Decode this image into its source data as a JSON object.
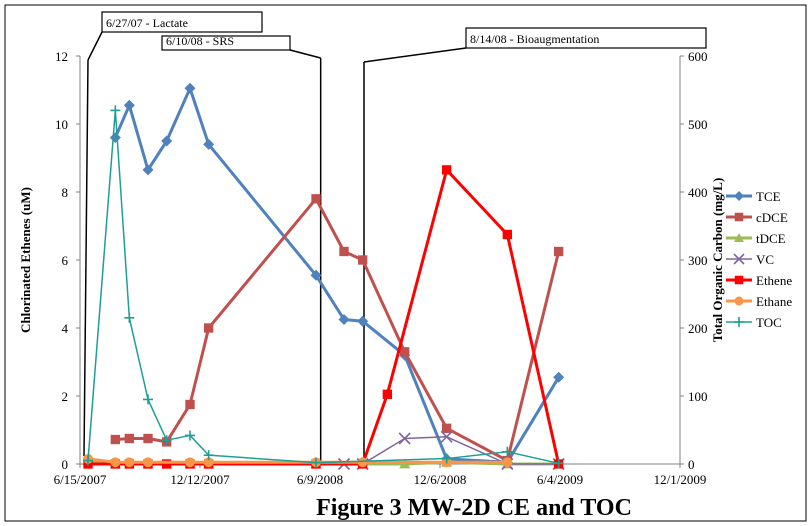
{
  "chart_data": {
    "type": "line",
    "title": "Figure 3 MW-2D CE and TOC",
    "xlabel": "",
    "ylabel": "Chlorinated Ethenes (uM)",
    "y2label": "Total Organic Carbon (mg/L)",
    "xlim": [
      "2007-06-15",
      "2009-12-01"
    ],
    "ylim": [
      0,
      12
    ],
    "y2lim": [
      0,
      600
    ],
    "grid": false,
    "legend_position": "right",
    "x_ticks": [
      {
        "date": "2007-06-15",
        "label": "6/15/2007"
      },
      {
        "date": "2007-12-12",
        "label": "12/12/2007"
      },
      {
        "date": "2008-06-09",
        "label": "6/9/2008"
      },
      {
        "date": "2008-12-06",
        "label": "12/6/2008"
      },
      {
        "date": "2009-06-04",
        "label": "6/4/2009"
      },
      {
        "date": "2009-12-01",
        "label": "12/1/2009"
      }
    ],
    "y_ticks": [
      "0",
      "2",
      "4",
      "6",
      "8",
      "10",
      "12"
    ],
    "y2_ticks": [
      "0",
      "100",
      "200",
      "300",
      "400",
      "500",
      "600"
    ],
    "annotations": [
      {
        "date": "2007-06-27",
        "label": "6/27/07 - Lactate"
      },
      {
        "date": "2008-06-10",
        "label": "6/10/08 - SRS"
      },
      {
        "date": "2008-08-14",
        "label": "8/14/08 - Bioaugmentation"
      }
    ],
    "series": [
      {
        "name": "TCE",
        "color": "#4F81BD",
        "marker": "diamond",
        "axis": "left",
        "points": [
          [
            "2007-08-07",
            9.6
          ],
          [
            "2007-08-28",
            10.55
          ],
          [
            "2007-09-25",
            8.65
          ],
          [
            "2007-10-23",
            9.5
          ],
          [
            "2007-11-27",
            11.05
          ],
          [
            "2007-12-25",
            9.4
          ],
          [
            "2008-06-03",
            5.55
          ],
          [
            "2008-07-15",
            4.25
          ],
          [
            "2008-08-12",
            4.2
          ],
          [
            "2008-10-14",
            3.2
          ],
          [
            "2008-12-16",
            0.15
          ],
          [
            "2009-03-17",
            0.05
          ],
          [
            "2009-06-02",
            2.55
          ]
        ]
      },
      {
        "name": "cDCE",
        "color": "#C0504D",
        "marker": "square",
        "axis": "left",
        "points": [
          [
            "2007-08-07",
            0.72
          ],
          [
            "2007-08-28",
            0.75
          ],
          [
            "2007-09-25",
            0.75
          ],
          [
            "2007-10-23",
            0.65
          ],
          [
            "2007-11-27",
            1.75
          ],
          [
            "2007-12-25",
            4.0
          ],
          [
            "2008-06-03",
            7.8
          ],
          [
            "2008-07-15",
            6.25
          ],
          [
            "2008-08-12",
            6.0
          ],
          [
            "2008-10-14",
            3.3
          ],
          [
            "2008-12-16",
            1.05
          ],
          [
            "2009-03-17",
            0.1
          ],
          [
            "2009-06-02",
            6.25
          ]
        ]
      },
      {
        "name": "tDCE",
        "color": "#9BBB59",
        "marker": "triangle",
        "axis": "left",
        "points": [
          [
            "2007-06-27",
            0.1
          ],
          [
            "2007-08-07",
            0.0
          ],
          [
            "2007-09-25",
            0.0
          ],
          [
            "2007-11-27",
            0.0
          ],
          [
            "2007-12-25",
            0.0
          ],
          [
            "2008-06-03",
            0.0
          ],
          [
            "2008-10-14",
            0.0
          ],
          [
            "2008-12-16",
            0.05
          ],
          [
            "2009-03-17",
            0.0
          ],
          [
            "2009-06-02",
            0.0
          ]
        ]
      },
      {
        "name": "VC",
        "color": "#8064A2",
        "marker": "x",
        "axis": "left",
        "points": [
          [
            "2008-07-15",
            0.0
          ],
          [
            "2008-08-12",
            0.0
          ],
          [
            "2008-10-14",
            0.75
          ],
          [
            "2008-12-16",
            0.8
          ],
          [
            "2009-03-17",
            0.0
          ],
          [
            "2009-06-02",
            0.0
          ]
        ]
      },
      {
        "name": "Ethene",
        "color": "#FF0000",
        "marker": "square",
        "axis": "left",
        "points": [
          [
            "2007-06-27",
            0.0
          ],
          [
            "2007-08-07",
            0.0
          ],
          [
            "2007-08-28",
            0.0
          ],
          [
            "2007-09-25",
            0.0
          ],
          [
            "2007-10-23",
            0.0
          ],
          [
            "2007-11-27",
            0.0
          ],
          [
            "2007-12-25",
            0.0
          ],
          [
            "2008-06-03",
            0.0
          ],
          [
            "2008-08-12",
            0.0
          ],
          [
            "2008-09-18",
            2.05
          ],
          [
            "2008-12-16",
            8.65
          ],
          [
            "2009-03-17",
            6.75
          ],
          [
            "2009-06-02",
            0.0
          ]
        ]
      },
      {
        "name": "Ethane",
        "color": "#F79646",
        "marker": "circle",
        "axis": "left",
        "points": [
          [
            "2007-06-27",
            0.15
          ],
          [
            "2007-08-07",
            0.05
          ],
          [
            "2007-08-28",
            0.05
          ],
          [
            "2007-09-25",
            0.05
          ],
          [
            "2007-11-27",
            0.05
          ],
          [
            "2007-12-25",
            0.05
          ],
          [
            "2008-06-03",
            0.05
          ],
          [
            "2008-08-12",
            0.05
          ],
          [
            "2008-12-16",
            0.05
          ],
          [
            "2009-03-17",
            0.05
          ]
        ]
      },
      {
        "name": "TOC",
        "color": "#1F9E95",
        "marker": "plus",
        "axis": "right",
        "points": [
          [
            "2007-06-27",
            5
          ],
          [
            "2007-08-07",
            520
          ],
          [
            "2007-08-28",
            215
          ],
          [
            "2007-09-25",
            95
          ],
          [
            "2007-10-23",
            35
          ],
          [
            "2007-11-27",
            42
          ],
          [
            "2007-12-25",
            13
          ],
          [
            "2008-06-03",
            2
          ],
          [
            "2008-12-16",
            8
          ],
          [
            "2009-03-17",
            18
          ],
          [
            "2009-06-02",
            1
          ]
        ]
      }
    ]
  }
}
